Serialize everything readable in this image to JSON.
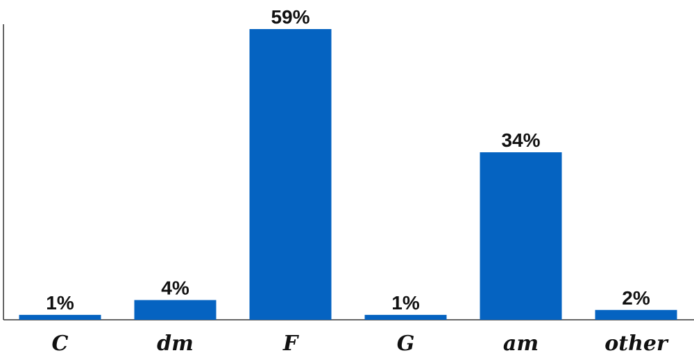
{
  "chart_data": {
    "type": "bar",
    "title": "",
    "xlabel": "",
    "ylabel": "",
    "categories": [
      "C",
      "dm",
      "F",
      "G",
      "am",
      "other"
    ],
    "values": [
      1,
      4,
      59,
      1,
      34,
      2
    ],
    "value_labels": [
      "1%",
      "4%",
      "59%",
      "1%",
      "34%",
      "2%"
    ],
    "unit": "%",
    "ylim": [
      0,
      59
    ],
    "grid": false,
    "legend": "none",
    "bar_color": "#0563c1",
    "axis_color": "#333333"
  }
}
